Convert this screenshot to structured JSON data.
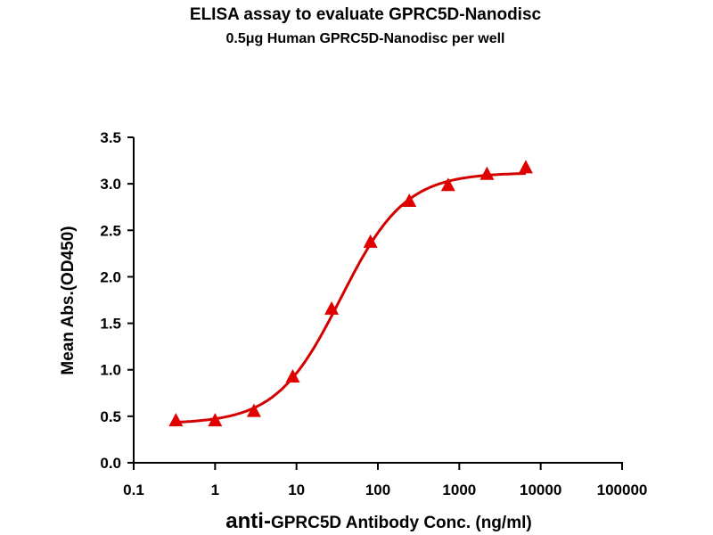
{
  "chart_data": {
    "type": "scatter",
    "title": "ELISA assay to evaluate GPRC5D-Nanodisc",
    "subtitle": "0.5μg Human GPRC5D-Nanodisc per well",
    "xlabel_prefix": "anti-",
    "xlabel": "GPRC5D Antibody Conc. (ng/ml)",
    "ylabel": "Mean Abs.(OD450)",
    "xscale": "log",
    "xlim": [
      0.1,
      100000
    ],
    "ylim": [
      0,
      3.5
    ],
    "xticks": [
      "0.1",
      "1",
      "10",
      "100",
      "1000",
      "10000",
      "100000"
    ],
    "xtick_values": [
      0.1,
      1,
      10,
      100,
      1000,
      10000,
      100000
    ],
    "yticks": [
      "0.0",
      "0.5",
      "1.0",
      "1.5",
      "2.0",
      "2.5",
      "3.0",
      "3.5"
    ],
    "ytick_values": [
      0,
      0.5,
      1,
      1.5,
      2,
      2.5,
      3,
      3.5
    ],
    "grid": false,
    "series": [
      {
        "name": "GPRC5D-Nanodisc",
        "marker": "triangle",
        "color": "#e00000",
        "x": [
          0.33,
          1,
          3,
          9,
          27,
          81,
          243,
          729,
          2187,
          6561
        ],
        "y": [
          0.45,
          0.45,
          0.55,
          0.92,
          1.65,
          2.37,
          2.81,
          2.98,
          3.1,
          3.17
        ]
      }
    ],
    "fit": {
      "model": "4PL",
      "bottom": 0.42,
      "top": 3.12,
      "ec50": 35,
      "hill": 1.1,
      "color": "#d40000"
    }
  }
}
